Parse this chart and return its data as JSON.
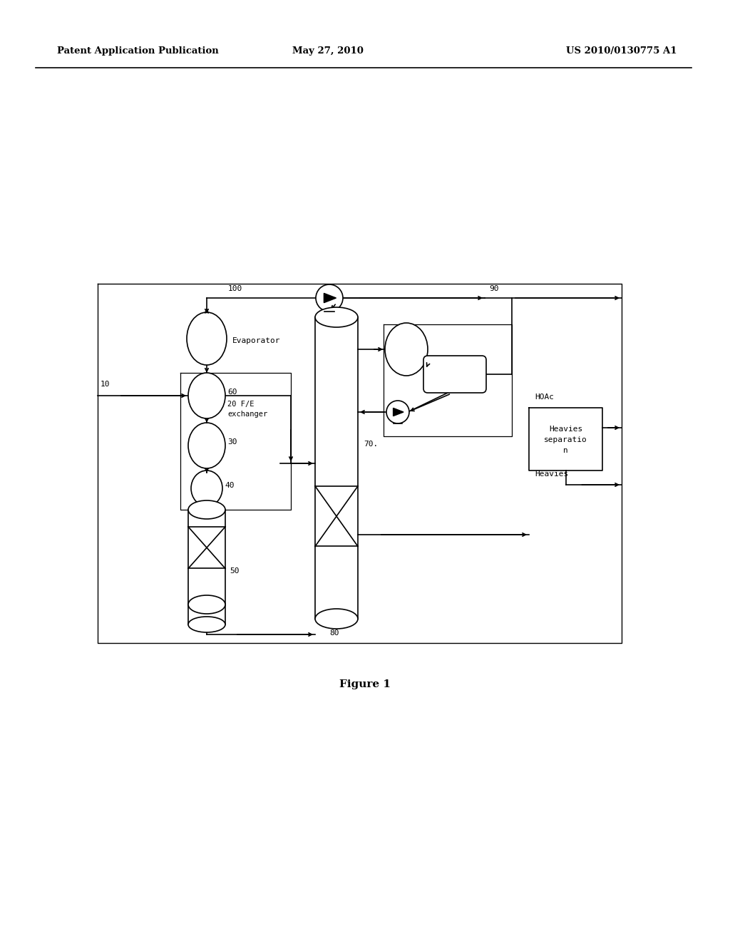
{
  "bg_color": "#ffffff",
  "header_left": "Patent Application Publication",
  "header_center": "May 27, 2010",
  "header_right": "US 2010/0130775 A1",
  "figure_label": "Figure 1",
  "line_color": "#000000"
}
